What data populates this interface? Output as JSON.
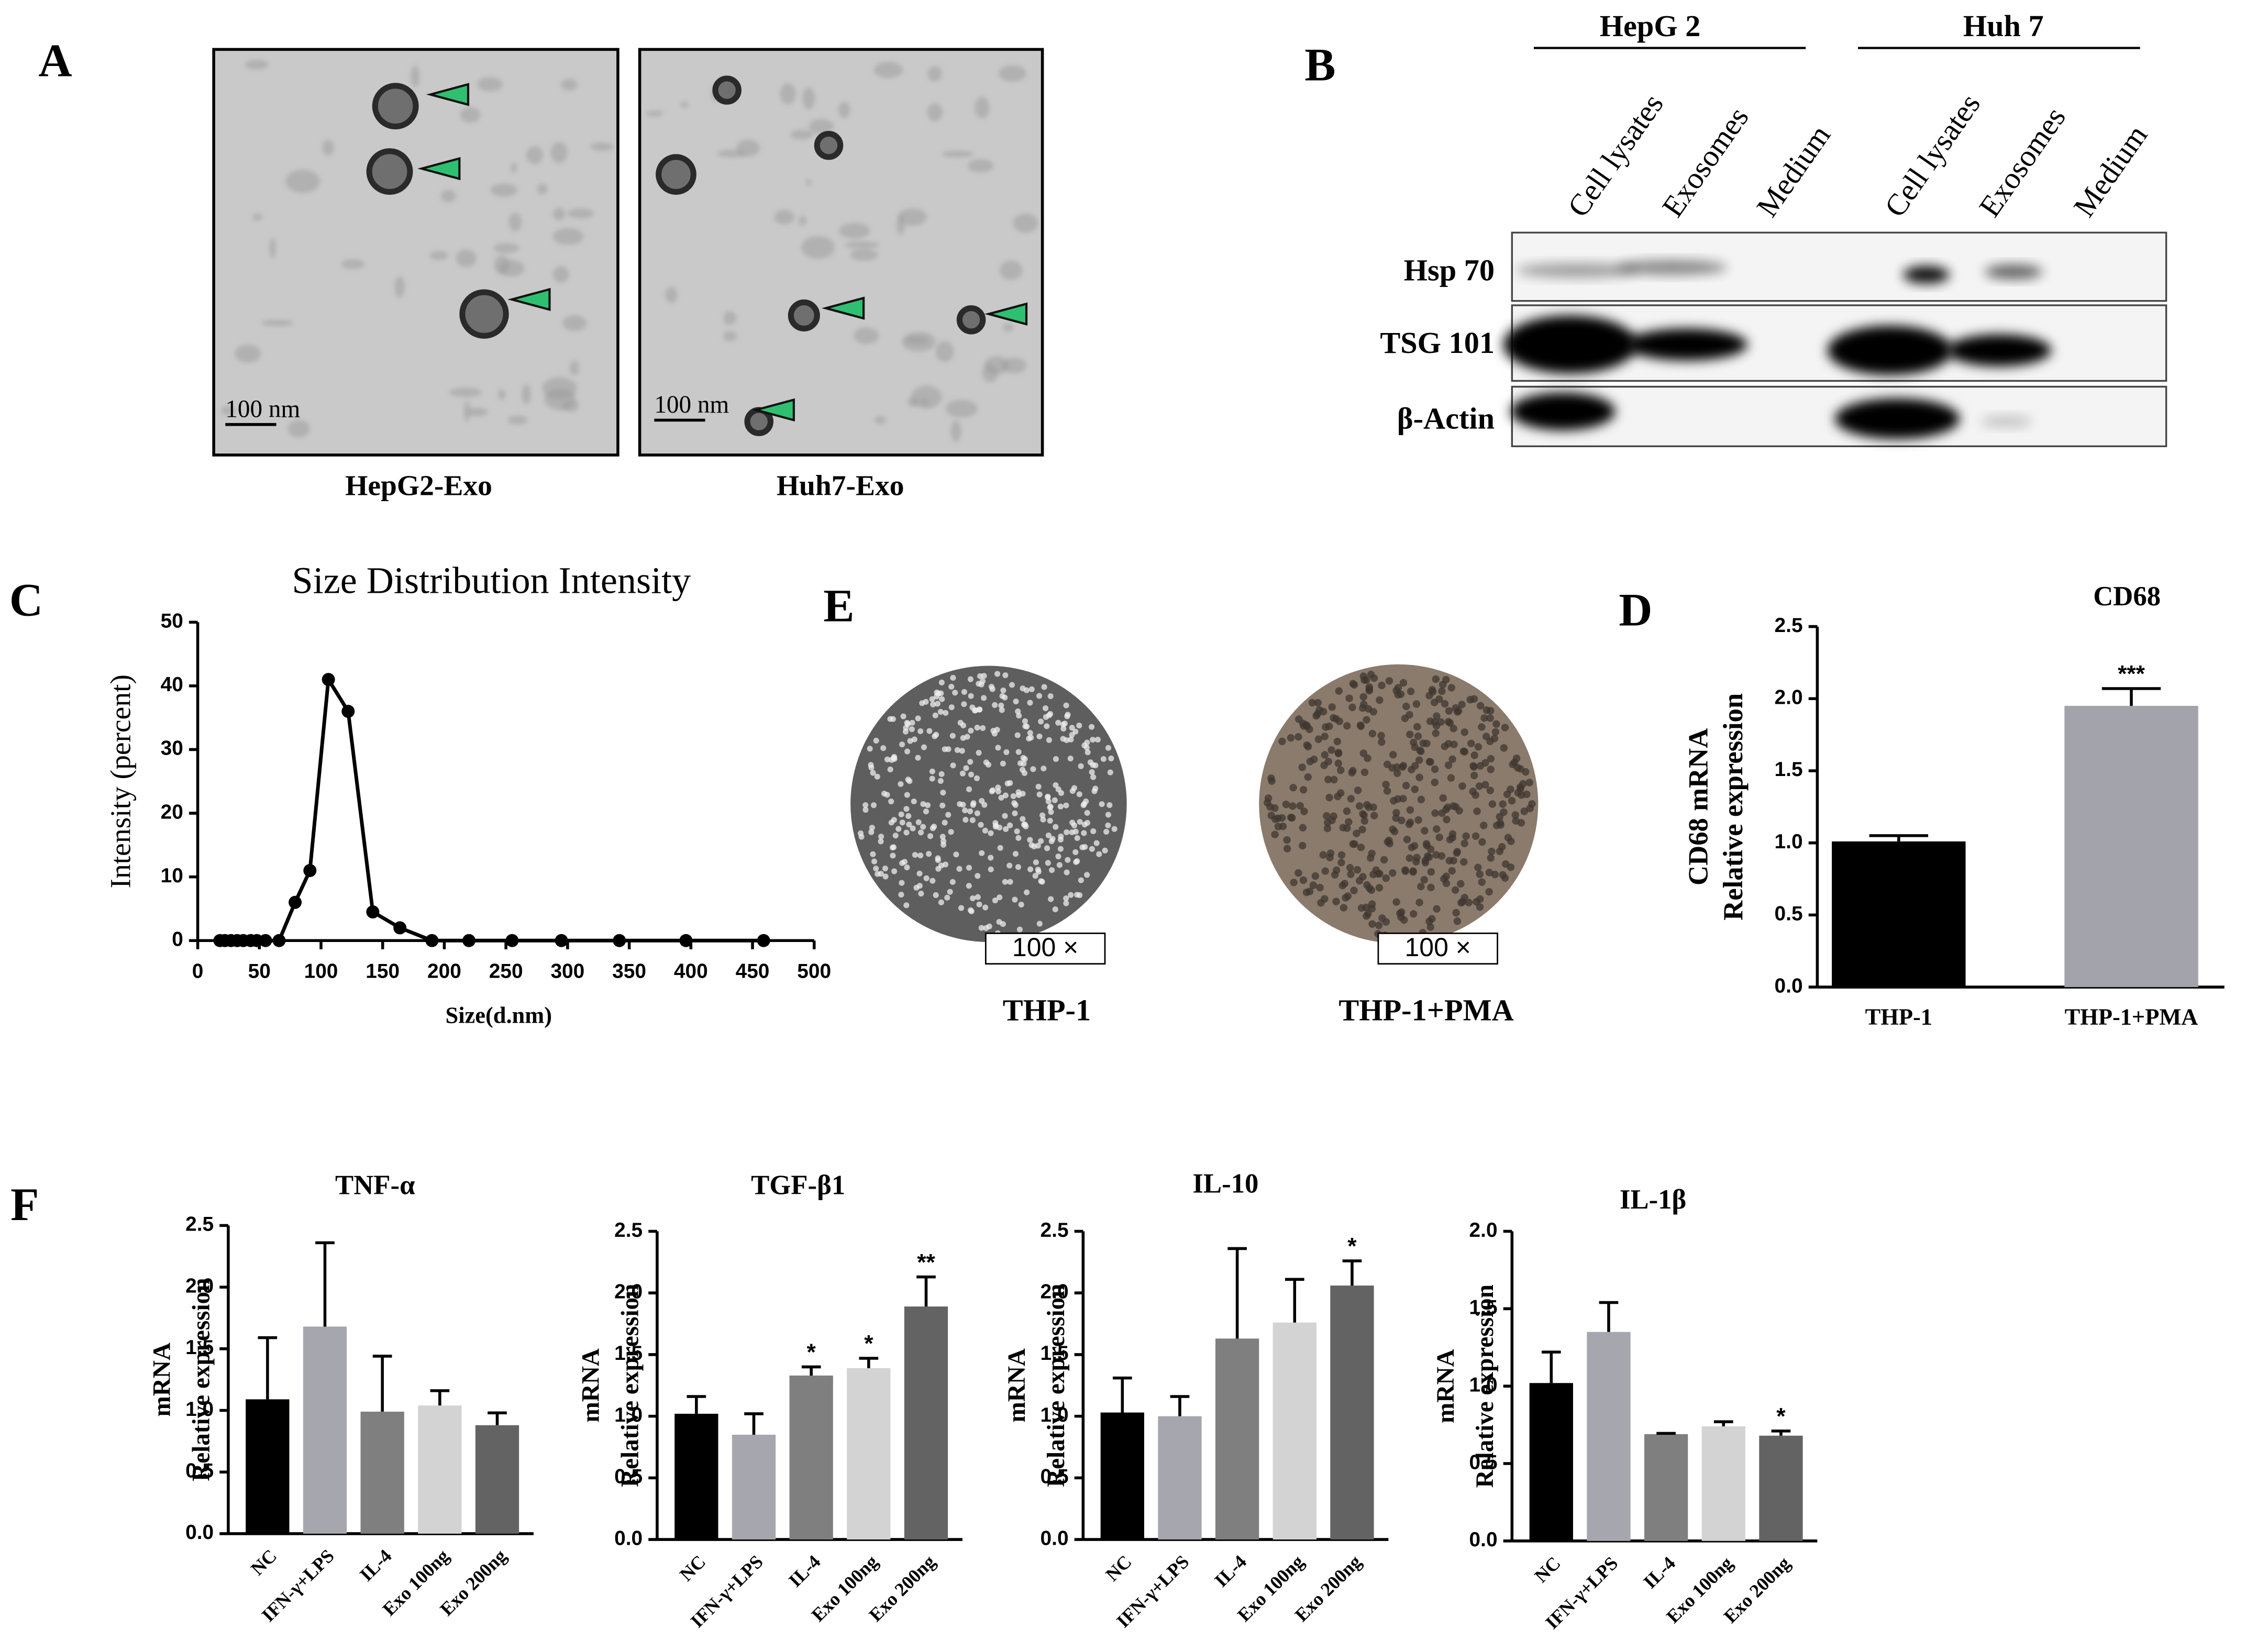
{
  "panel_labels": [
    "A",
    "B",
    "C",
    "D",
    "E",
    "F"
  ],
  "panel_a": {
    "scale_bar": "100 nm",
    "captions": [
      "HepG2-Exo",
      "Huh7-Exo"
    ]
  },
  "panel_b": {
    "groups": [
      "HepG 2",
      "Huh 7"
    ],
    "lanes": [
      "Cell lysates",
      "Exosomes",
      "Medium"
    ],
    "proteins": [
      "Hsp 70",
      "TSG 101",
      "β-Actin"
    ]
  },
  "panel_e": {
    "magnification": "100 ×",
    "captions": [
      "THP-1",
      "THP-1+PMA"
    ]
  },
  "chart_data": [
    {
      "type": "line",
      "title": "Size Distribution Intensity",
      "x_label": "Size(d.nm)",
      "y_label": "Intensity (percent)",
      "x": [
        18,
        22,
        27,
        32,
        37,
        43,
        48,
        55,
        66,
        79,
        91,
        106,
        122,
        142,
        164,
        190,
        220,
        255,
        295,
        342,
        396,
        459
      ],
      "series": [
        {
          "color": "#000000",
          "values": [
            0,
            0,
            0,
            0,
            0,
            0,
            0,
            0,
            0,
            6,
            11,
            41,
            36,
            4.5,
            2,
            0,
            0,
            0,
            0,
            0,
            0,
            0
          ]
        }
      ],
      "xlim": [
        0,
        500
      ],
      "xticks": [
        0,
        50,
        100,
        150,
        200,
        250,
        300,
        350,
        400,
        450,
        500
      ],
      "ylim": [
        0,
        50
      ],
      "yticks": [
        0,
        10,
        20,
        30,
        40,
        50
      ]
    },
    {
      "type": "bar",
      "title": "CD68",
      "y_label": [
        "CD68 mRNA",
        "Relative expression"
      ],
      "categories": [
        "THP-1",
        "THP-1+PMA"
      ],
      "values": [
        1.01,
        1.95
      ],
      "errors": [
        0.04,
        0.12
      ],
      "colors": [
        "#000000",
        "#a3a3ab"
      ],
      "annotations": [
        null,
        "***"
      ],
      "ylim": [
        0,
        2.5
      ],
      "yticks": [
        {
          "value": 0,
          "label": "0.0"
        },
        0.5,
        {
          "value": 1,
          "label": "1.0"
        },
        1.5,
        {
          "value": 2,
          "label": "2.0"
        },
        2.5
      ]
    },
    {
      "type": "bar",
      "title": "TNF-α",
      "y_label": [
        "mRNA",
        "Relative expression"
      ],
      "categories": [
        "NC",
        "IFN-γ+LPS",
        "IL-4",
        "Exo 100ng",
        "Exo 200ng"
      ],
      "values": [
        1.09,
        1.68,
        0.99,
        1.04,
        0.88
      ],
      "errors": [
        0.5,
        0.68,
        0.45,
        0.12,
        0.1
      ],
      "colors": [
        "#000000",
        "#a6a6ae",
        "#7f7f7f",
        "#d3d3d3",
        "#636363"
      ],
      "annotations": [
        null,
        null,
        null,
        null,
        null
      ],
      "ylim": [
        0,
        2.5
      ],
      "yticks": [
        {
          "value": 0,
          "label": "0.0"
        },
        0.5,
        {
          "value": 1,
          "label": "1.0"
        },
        1.5,
        {
          "value": 2,
          "label": "2.0"
        },
        2.5
      ]
    },
    {
      "type": "bar",
      "title": "TGF-β1",
      "y_label": [
        "mRNA",
        "Relative expression"
      ],
      "categories": [
        "NC",
        "IFN-γ+LPS",
        "IL-4",
        "Exo 100ng",
        "Exo 200ng"
      ],
      "values": [
        1.02,
        0.85,
        1.33,
        1.39,
        1.89
      ],
      "errors": [
        0.14,
        0.17,
        0.07,
        0.08,
        0.24
      ],
      "colors": [
        "#000000",
        "#a6a6ae",
        "#7f7f7f",
        "#d3d3d3",
        "#636363"
      ],
      "annotations": [
        null,
        null,
        "*",
        "*",
        "**"
      ],
      "ylim": [
        0,
        2.5
      ],
      "yticks": [
        {
          "value": 0,
          "label": "0.0"
        },
        0.5,
        {
          "value": 1,
          "label": "1.0"
        },
        1.5,
        {
          "value": 2,
          "label": "2.0"
        },
        2.5
      ]
    },
    {
      "type": "bar",
      "title": "IL-10",
      "y_label": [
        "mRNA",
        "Relative expression"
      ],
      "categories": [
        "NC",
        "IFN-γ+LPS",
        "IL-4",
        "Exo 100ng",
        "Exo 200ng"
      ],
      "values": [
        1.03,
        1.0,
        1.63,
        1.76,
        2.06
      ],
      "errors": [
        0.28,
        0.16,
        0.73,
        0.35,
        0.2
      ],
      "colors": [
        "#000000",
        "#a6a6ae",
        "#7f7f7f",
        "#d3d3d3",
        "#636363"
      ],
      "annotations": [
        null,
        null,
        null,
        null,
        "*"
      ],
      "ylim": [
        0,
        2.5
      ],
      "yticks": [
        {
          "value": 0,
          "label": "0.0"
        },
        0.5,
        {
          "value": 1,
          "label": "1.0"
        },
        1.5,
        {
          "value": 2,
          "label": "2.0"
        },
        2.5
      ]
    },
    {
      "type": "bar",
      "title": "IL-1β",
      "y_label": [
        "mRNA",
        "Relative expression"
      ],
      "categories": [
        "NC",
        "IFN-γ+LPS",
        "IL-4",
        "Exo 100ng",
        "Exo 200ng"
      ],
      "values": [
        1.02,
        1.35,
        0.69,
        0.74,
        0.68
      ],
      "errors": [
        0.2,
        0.19,
        0.005,
        0.03,
        0.03
      ],
      "colors": [
        "#000000",
        "#a6a6ae",
        "#7f7f7f",
        "#d3d3d3",
        "#636363"
      ],
      "annotations": [
        null,
        null,
        null,
        null,
        "*"
      ],
      "ylim": [
        0,
        2
      ],
      "yticks": [
        {
          "value": 0,
          "label": "0.0"
        },
        0.5,
        {
          "value": 1,
          "label": "1.0"
        },
        1.5,
        {
          "value": 2,
          "label": "2.0"
        }
      ]
    }
  ]
}
